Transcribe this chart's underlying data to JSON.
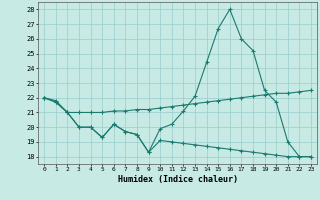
{
  "xlabel": "Humidex (Indice chaleur)",
  "bg_color": "#c8eae5",
  "grid_color": "#99cccc",
  "line_color": "#1a7a6e",
  "xlim": [
    -0.5,
    23.5
  ],
  "ylim": [
    17.5,
    28.5
  ],
  "yticks": [
    18,
    19,
    20,
    21,
    22,
    23,
    24,
    25,
    26,
    27,
    28
  ],
  "xticks": [
    0,
    1,
    2,
    3,
    4,
    5,
    6,
    7,
    8,
    9,
    10,
    11,
    12,
    13,
    14,
    15,
    16,
    17,
    18,
    19,
    20,
    21,
    22,
    23
  ],
  "line1_x": [
    0,
    1,
    2,
    3,
    4,
    5,
    6,
    7,
    8,
    9,
    10,
    11,
    12,
    13,
    14,
    15,
    16,
    17,
    18,
    19,
    20,
    21,
    22,
    23
  ],
  "line1_y": [
    22.0,
    21.7,
    21.0,
    20.0,
    20.0,
    19.3,
    20.2,
    19.7,
    19.5,
    18.3,
    19.9,
    20.2,
    21.1,
    22.1,
    24.4,
    26.7,
    28.0,
    26.0,
    25.2,
    22.5,
    21.7,
    19.0,
    18.0,
    18.0
  ],
  "line2_x": [
    0,
    1,
    2,
    3,
    4,
    5,
    6,
    7,
    8,
    9,
    10,
    11,
    12,
    13,
    14,
    15,
    16,
    17,
    18,
    19,
    20,
    21,
    22,
    23
  ],
  "line2_y": [
    22.0,
    21.8,
    21.0,
    21.0,
    21.0,
    21.0,
    21.1,
    21.1,
    21.2,
    21.2,
    21.3,
    21.4,
    21.5,
    21.6,
    21.7,
    21.8,
    21.9,
    22.0,
    22.1,
    22.2,
    22.3,
    22.3,
    22.4,
    22.5
  ],
  "line3_x": [
    0,
    1,
    2,
    3,
    4,
    5,
    6,
    7,
    8,
    9,
    10,
    11,
    12,
    13,
    14,
    15,
    16,
    17,
    18,
    19,
    20,
    21,
    22,
    23
  ],
  "line3_y": [
    22.0,
    21.7,
    21.0,
    20.0,
    20.0,
    19.3,
    20.2,
    19.7,
    19.5,
    18.3,
    19.1,
    19.0,
    18.9,
    18.8,
    18.7,
    18.6,
    18.5,
    18.4,
    18.3,
    18.2,
    18.1,
    18.0,
    18.0,
    18.0
  ]
}
